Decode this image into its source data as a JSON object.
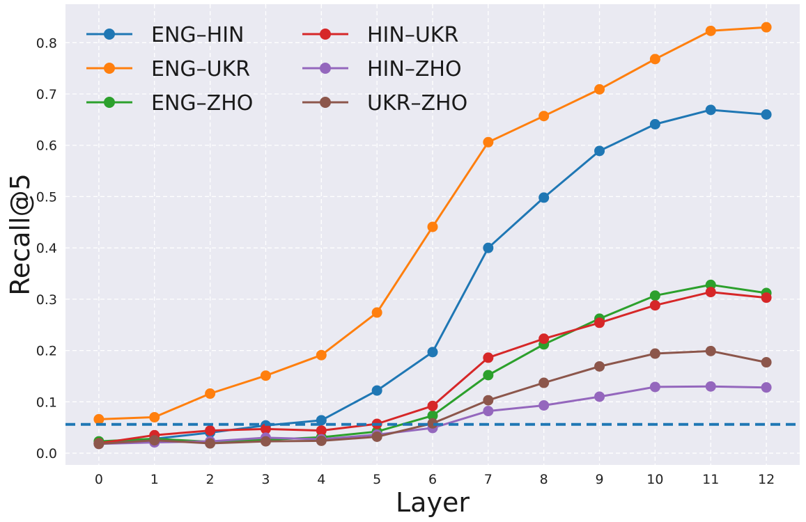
{
  "chart_data": {
    "type": "line",
    "title": "",
    "xlabel": "Layer",
    "ylabel": "Recall@5",
    "x": [
      0,
      1,
      2,
      3,
      4,
      5,
      6,
      7,
      8,
      9,
      10,
      11,
      12
    ],
    "x_tick_labels": [
      "0",
      "1",
      "2",
      "3",
      "4",
      "5",
      "6",
      "7",
      "8",
      "9",
      "10",
      "11",
      "12"
    ],
    "xlim": [
      -0.6,
      12.6
    ],
    "ylim": [
      -0.023,
      0.875
    ],
    "y_ticks": [
      0.0,
      0.1,
      0.2,
      0.3,
      0.4,
      0.5,
      0.6,
      0.7,
      0.8
    ],
    "y_tick_labels": [
      "0.0",
      "0.1",
      "0.2",
      "0.3",
      "0.4",
      "0.5",
      "0.6",
      "0.7",
      "0.8"
    ],
    "grid": true,
    "legend_position": "top-left",
    "legend_columns": 2,
    "baseline": {
      "value": 0.056,
      "color": "#1f77b4",
      "style": "dashed"
    },
    "series": [
      {
        "name": "ENG–HIN",
        "color": "#1f77b4",
        "values": [
          0.02,
          0.028,
          0.04,
          0.054,
          0.064,
          0.122,
          0.197,
          0.4,
          0.498,
          0.589,
          0.641,
          0.669,
          0.66
        ]
      },
      {
        "name": "ENG–UKR",
        "color": "#ff7f0e",
        "values": [
          0.066,
          0.07,
          0.116,
          0.151,
          0.191,
          0.274,
          0.441,
          0.606,
          0.657,
          0.709,
          0.768,
          0.823,
          0.83
        ]
      },
      {
        "name": "ENG–ZHO",
        "color": "#2ca02c",
        "values": [
          0.023,
          0.028,
          0.022,
          0.026,
          0.031,
          0.042,
          0.073,
          0.152,
          0.212,
          0.262,
          0.307,
          0.328,
          0.312
        ]
      },
      {
        "name": "HIN–UKR",
        "color": "#d62728",
        "values": [
          0.019,
          0.035,
          0.044,
          0.047,
          0.044,
          0.057,
          0.092,
          0.186,
          0.223,
          0.254,
          0.288,
          0.314,
          0.303
        ]
      },
      {
        "name": "HIN–ZHO",
        "color": "#9467bd",
        "values": [
          0.018,
          0.021,
          0.023,
          0.03,
          0.027,
          0.036,
          0.049,
          0.082,
          0.093,
          0.11,
          0.129,
          0.13,
          0.128
        ]
      },
      {
        "name": "UKR–ZHO",
        "color": "#8c564b",
        "values": [
          0.018,
          0.025,
          0.019,
          0.023,
          0.024,
          0.032,
          0.058,
          0.103,
          0.137,
          0.169,
          0.194,
          0.199,
          0.177
        ]
      }
    ]
  }
}
